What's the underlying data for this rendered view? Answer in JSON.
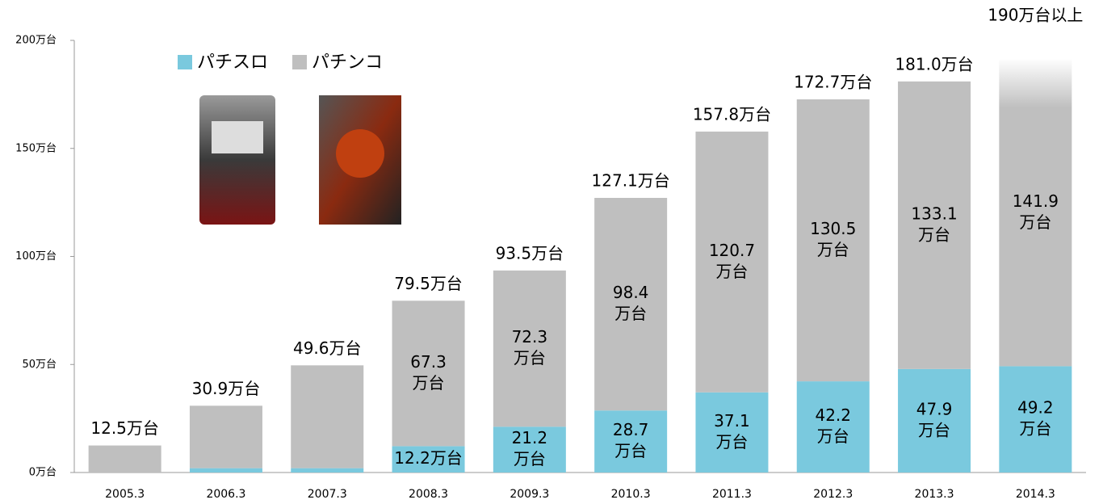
{
  "chart_data": {
    "type": "stacked-bar",
    "categories": [
      "2005.3",
      "2006.3",
      "2007.3",
      "2008.3",
      "2009.3",
      "2010.3",
      "2011.3",
      "2012.3",
      "2013.3",
      "2014.3"
    ],
    "series": [
      {
        "name": "パチスロ",
        "color": "#7ac9de",
        "values": [
          0,
          2,
          2,
          12.2,
          21.2,
          28.7,
          37.1,
          42.2,
          47.9,
          49.2
        ],
        "value_labels": [
          null,
          null,
          null,
          [
            "12.2万台"
          ],
          [
            "21.2",
            "万台"
          ],
          [
            "28.7",
            "万台"
          ],
          [
            "37.1",
            "万台"
          ],
          [
            "42.2",
            "万台"
          ],
          [
            "47.9",
            "万台"
          ],
          [
            "49.2",
            "万台"
          ]
        ]
      },
      {
        "name": "パチンコ",
        "color": "#bfbfbf",
        "values": [
          12.5,
          28.9,
          47.6,
          67.3,
          72.3,
          98.4,
          120.7,
          130.5,
          133.1,
          141.9
        ],
        "value_labels": [
          null,
          null,
          null,
          [
            "67.3",
            "万台"
          ],
          [
            "72.3",
            "万台"
          ],
          [
            "98.4",
            "万台"
          ],
          [
            "120.7",
            "万台"
          ],
          [
            "130.5",
            "万台"
          ],
          [
            "133.1",
            "万台"
          ],
          [
            "141.9",
            "万台"
          ]
        ]
      }
    ],
    "total_labels": [
      "12.5万台",
      "30.9万台",
      "49.6万台",
      "79.5万台",
      "93.5万台",
      "127.1万台",
      "157.8万台",
      "172.7万台",
      "181.0万台",
      "190万台以上"
    ],
    "ylim": [
      0,
      200
    ],
    "yticks": [
      {
        "value": 0,
        "label": "0万台"
      },
      {
        "value": 50,
        "label": "50万台"
      },
      {
        "value": 100,
        "label": "100万台"
      },
      {
        "value": 150,
        "label": "150万台"
      },
      {
        "value": 200,
        "label": "200万台"
      }
    ],
    "legend": "top-left"
  }
}
